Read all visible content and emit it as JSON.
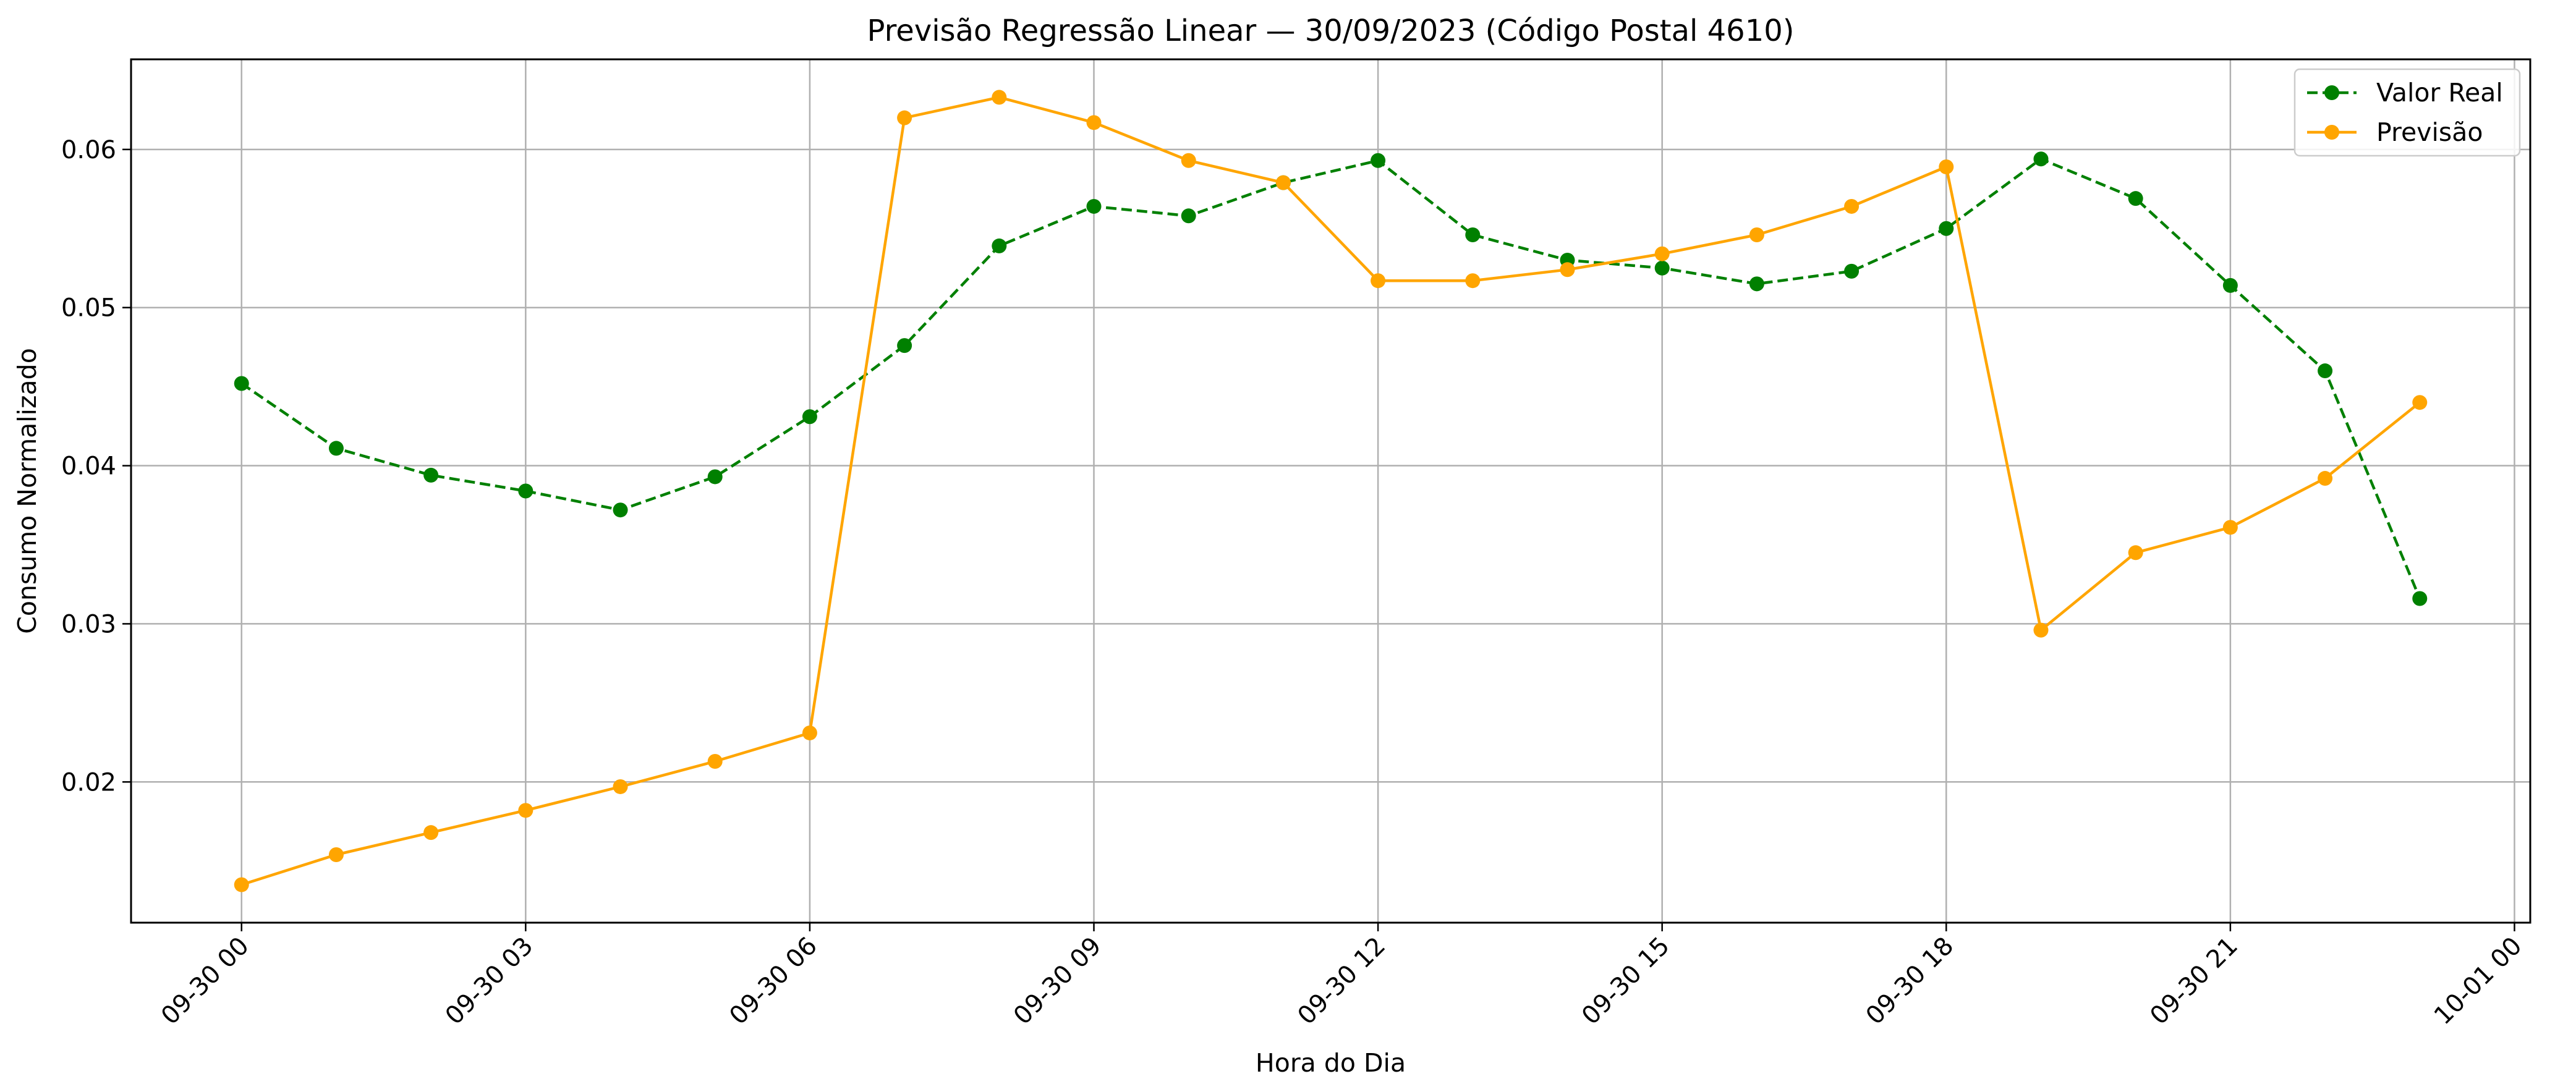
{
  "chart_data": {
    "type": "line",
    "title": "Previsão Regressão Linear — 30/09/2023 (Código Postal 4610)",
    "xlabel": "Hora do Dia",
    "ylabel": "Consumo Normalizado",
    "x": [
      "2023-09-30 00:00",
      "2023-09-30 01:00",
      "2023-09-30 02:00",
      "2023-09-30 03:00",
      "2023-09-30 04:00",
      "2023-09-30 05:00",
      "2023-09-30 06:00",
      "2023-09-30 07:00",
      "2023-09-30 08:00",
      "2023-09-30 09:00",
      "2023-09-30 10:00",
      "2023-09-30 11:00",
      "2023-09-30 12:00",
      "2023-09-30 13:00",
      "2023-09-30 14:00",
      "2023-09-30 15:00",
      "2023-09-30 16:00",
      "2023-09-30 17:00",
      "2023-09-30 18:00",
      "2023-09-30 19:00",
      "2023-09-30 20:00",
      "2023-09-30 21:00",
      "2023-09-30 22:00",
      "2023-09-30 23:00"
    ],
    "xlim": [
      "2023-09-29 22:50",
      "2023-10-01 00:10"
    ],
    "ylim": [
      0.0111,
      0.0657
    ],
    "x_ticks": [
      "09-30 00",
      "09-30 03",
      "09-30 06",
      "09-30 09",
      "09-30 12",
      "09-30 15",
      "09-30 18",
      "09-30 21",
      "10-01 00"
    ],
    "y_ticks": [
      "0.02",
      "0.03",
      "0.04",
      "0.05",
      "0.06"
    ],
    "grid": true,
    "legend_position": "upper right",
    "series": [
      {
        "name": "Valor Real",
        "color": "#008000",
        "style": "dashed",
        "marker": "circle",
        "values": [
          0.0452,
          0.0411,
          0.0394,
          0.0384,
          0.0372,
          0.0393,
          0.0431,
          0.0476,
          0.0539,
          0.0564,
          0.0558,
          0.0579,
          0.0593,
          0.0546,
          0.053,
          0.0525,
          0.0515,
          0.0523,
          0.055,
          0.0594,
          0.0569,
          0.0514,
          0.046,
          0.0316
        ]
      },
      {
        "name": "Previsão",
        "color": "#FFA500",
        "style": "solid",
        "marker": "circle",
        "values": [
          0.0135,
          0.0154,
          0.0168,
          0.0182,
          0.0197,
          0.0213,
          0.0231,
          0.062,
          0.0633,
          0.0617,
          0.0593,
          0.0579,
          0.0517,
          0.0517,
          0.0524,
          0.0534,
          0.0546,
          0.0564,
          0.0589,
          0.0296,
          0.0345,
          0.0361,
          0.0392,
          0.044
        ]
      }
    ]
  }
}
